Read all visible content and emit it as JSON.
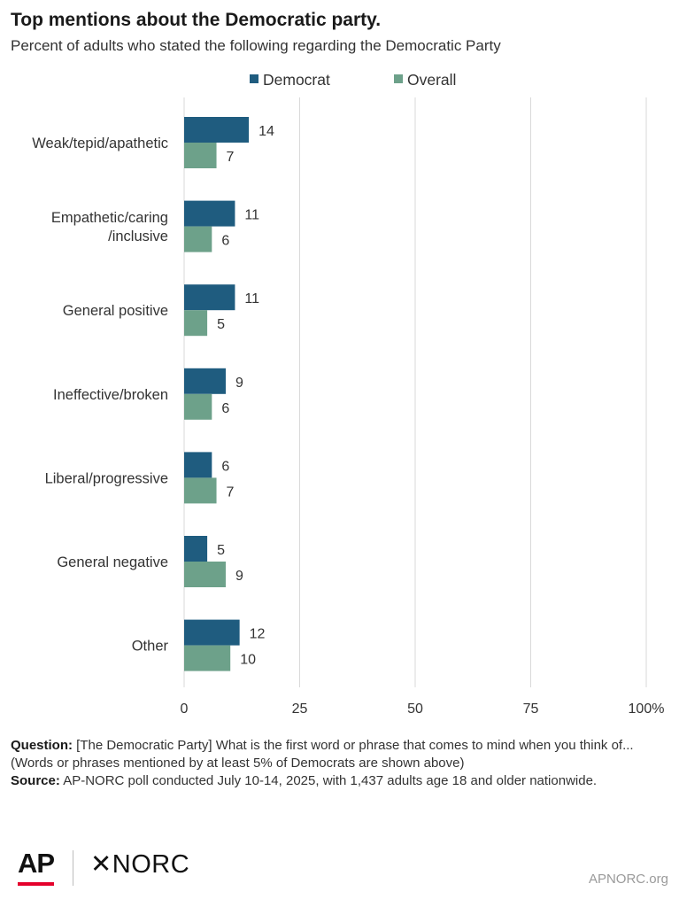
{
  "title": "Top mentions about the Democratic party.",
  "subtitle": "Percent of adults who stated the following regarding the Democratic Party",
  "colors": {
    "democrat": "#1f5c7f",
    "overall": "#6da18a",
    "grid": "#d9d9d9",
    "text": "#333333"
  },
  "chart_data": {
    "type": "bar",
    "orientation": "horizontal",
    "categories": [
      "Weak/tepid/apathetic",
      "Empathetic/caring\n/inclusive",
      "General positive",
      "Ineffective/broken",
      "Liberal/progressive",
      "General negative",
      "Other"
    ],
    "series": [
      {
        "name": "Democrat",
        "values": [
          14,
          11,
          11,
          9,
          6,
          5,
          12
        ]
      },
      {
        "name": "Overall",
        "values": [
          7,
          6,
          5,
          6,
          7,
          9,
          10
        ]
      }
    ],
    "xlim": [
      0,
      100
    ],
    "ticks": [
      0,
      25,
      50,
      75,
      100
    ],
    "tick_suffix_last": "%",
    "grid": true,
    "legend_position": "top"
  },
  "notes": {
    "question_label": "Question:",
    "question_text": "[The Democratic Party] What is the first word or phrase that comes to mind when you think of...",
    "note_text": "(Words or phrases mentioned by at least 5% of Democrats are shown above)",
    "source_label": "Source:",
    "source_text": "AP-NORC poll conducted July 10-14, 2025, with 1,437 adults age 18 and older nationwide."
  },
  "footer": {
    "ap_logo": "AP",
    "norc_logo": "✕NORC",
    "site": "APNORC.org"
  }
}
